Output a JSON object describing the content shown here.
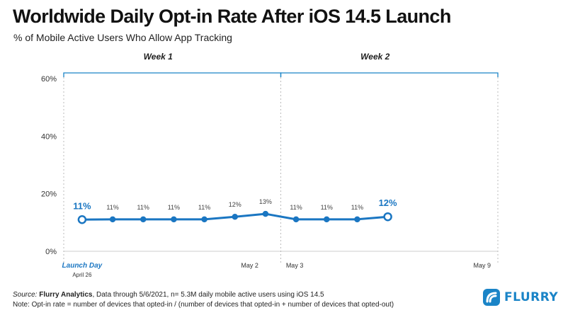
{
  "header": {
    "title": "Worldwide Daily Opt-in Rate After iOS 14.5 Launch",
    "subtitle": "% of Mobile Active Users Who Allow App Tracking"
  },
  "footer": {
    "source_label": "Source:",
    "source_name": "Flurry Analytics",
    "source_text": ", Data through 5/6/2021, n= 5.3M daily mobile active users using iOS 14.5",
    "note": "Note: Opt-in rate = number of devices that opted-in / (number of devices that opted-in + number of devices that opted-out)"
  },
  "logo": {
    "text": "FLURRY",
    "icon": "flurry-logo-icon"
  },
  "colors": {
    "line": "#1a76c2",
    "bracket": "#1a84c7",
    "grid": "#bbbbbb",
    "axis": "#555555"
  },
  "chart_data": {
    "type": "line",
    "title": "Worldwide Daily Opt-in Rate After iOS 14.5 Launch",
    "subtitle": "% of Mobile Active Users Who Allow App Tracking",
    "x_days": [
      0,
      1,
      2,
      3,
      4,
      5,
      6,
      7,
      8,
      9,
      10
    ],
    "values": [
      11.0,
      11.1,
      11.1,
      11.1,
      11.1,
      12.0,
      13.0,
      11.1,
      11.1,
      11.1,
      12.0
    ],
    "value_labels": [
      "11%",
      "11%",
      "11%",
      "11%",
      "11%",
      "12%",
      "13%",
      "11%",
      "11%",
      "11%",
      "12%"
    ],
    "emphasized_points": [
      0,
      10
    ],
    "ylim": [
      0,
      60
    ],
    "y_ticks": [
      {
        "value": 0,
        "label": "0%"
      },
      {
        "value": 20,
        "label": "20%"
      },
      {
        "value": 40,
        "label": "40%"
      },
      {
        "value": 60,
        "label": "60%"
      }
    ],
    "x_labels": [
      {
        "day": 0,
        "label": "Launch Day",
        "sublabel": "April 26"
      },
      {
        "day": 6,
        "label": "May 2"
      },
      {
        "day": 7,
        "label": "May 3"
      },
      {
        "day": 13.6,
        "label": "May 9"
      }
    ],
    "week_brackets": [
      {
        "label": "Week 1",
        "start": -0.6,
        "end": 6.5
      },
      {
        "label": "Week 2",
        "start": 6.5,
        "end": 13.6
      }
    ],
    "grid": "vertical dotted at week boundaries",
    "xrange": [
      -0.6,
      13.6
    ]
  }
}
